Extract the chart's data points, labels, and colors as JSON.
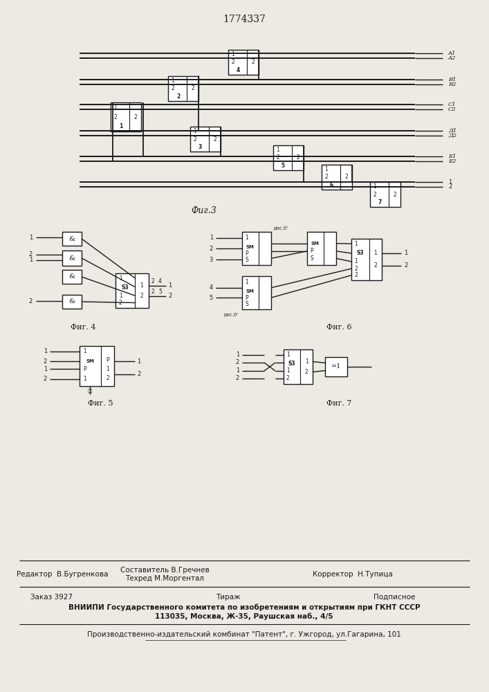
{
  "patent_number": "1774337",
  "bg_color": "#ede9e3",
  "line_color": "#1a1a1a",
  "text_color": "#1a1a1a",
  "footer": {
    "editor": "Редактор  В.Бугренкова",
    "composer": "Составитель В.Гречнев",
    "techred": "Техред М.Моргентал",
    "corrector": "Корректор  Н.Тупица",
    "order": "Заказ 3927",
    "tirazh": "Тираж",
    "podpisnoe": "Подписное",
    "vniipи": "ВНИИПИ Государственного комитета по изобретениям и открытиям при ГКНТ СССР",
    "address": "113035, Москва, Ж-35, Раушская наб., 4/5",
    "plant": "Производственно-издательский комбинат \"Патент\", г. Ужгород, ул.Гагарина, 101"
  }
}
